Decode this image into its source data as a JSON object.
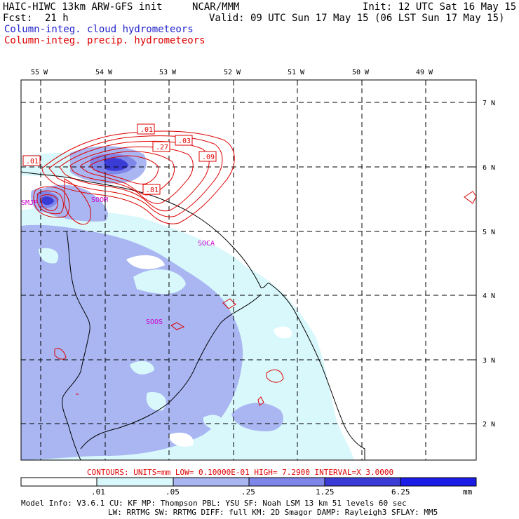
{
  "header": {
    "title": "HAIC-HIWC 13km ARW-GFS init",
    "org": "NCAR/MMM",
    "init": "Init: 12 UTC Sat 16 May 15",
    "fcst_label": "Fcst:",
    "fcst_value": "21 h",
    "valid": "Valid: 09 UTC Sun 17 May 15 (06 LST Sun 17 May 15)",
    "legend_cloud": "Column-integ. cloud hydrometeors",
    "legend_precip": "Column-integ. precip. hydrometeors"
  },
  "map": {
    "lon_labels": [
      "55 W",
      "54 W",
      "53 W",
      "52 W",
      "51 W",
      "50 W",
      "49 W"
    ],
    "lat_labels": [
      "7 N",
      "6 N",
      "5 N",
      "4 N",
      "3 N",
      "2 N"
    ],
    "stations": [
      "SMJP",
      "SOOM",
      "SOCA",
      "SOOS"
    ],
    "contour_labels": [
      ".01",
      ".01",
      ".27",
      ".03",
      ".09",
      ".81"
    ],
    "colors": {
      "cloud_lightest": "#d9f8fb",
      "cloud_light": "#a9b6f2",
      "cloud_mid": "#7f86ea",
      "cloud_dark": "#3b3bd6",
      "contour": "#dd0000",
      "station": "#cc00cc"
    }
  },
  "footer": {
    "contours": "CONTOURS:  UNITS=mm   LOW= 0.10000E-01   HIGH=  7.2900     INTERVAL=X  3.0000",
    "scale_ticks": [
      ".01",
      ".05",
      ".25",
      "1.25",
      "6.25"
    ],
    "scale_unit": "mm",
    "scale_colors": [
      "#ffffff",
      "#d9f8fb",
      "#a9b6f2",
      "#7f86ea",
      "#3b3bd6",
      "#1c1ce8"
    ],
    "model_line1": "Model Info: V3.6.1    CU: KF      MP: Thompson    PBL: YSU     SF: Noah LSM    13 km   51 levels   60 sec",
    "model_line2": "LW: RRTMG   SW: RRTMG  DIFF: full   KM: 2D Smagor DAMP: Rayleigh3  SFLAY: MM5"
  }
}
